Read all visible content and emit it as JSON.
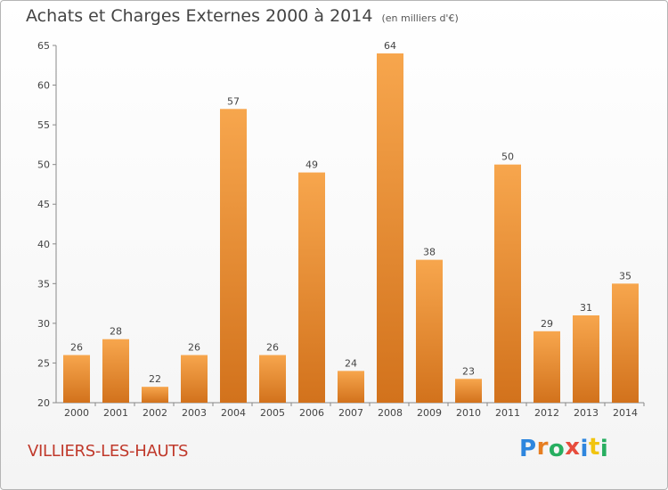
{
  "chart_title": "Achats et Charges Externes 2000 à 2014",
  "chart_subtitle": "(en milliers d'€)",
  "commune": "VILLIERS-LES-HAUTS",
  "logo_letters": [
    {
      "char": "P",
      "color": "#2e86de"
    },
    {
      "char": "r",
      "color": "#e67e22"
    },
    {
      "char": "o",
      "color": "#27ae60"
    },
    {
      "char": "x",
      "color": "#e74c3c"
    },
    {
      "char": "i",
      "color": "#2e86de"
    },
    {
      "char": "t",
      "color": "#f1c40f"
    },
    {
      "char": "i",
      "color": "#27ae60"
    }
  ],
  "colors": {
    "bar_light": "#f7a64d",
    "bar_dark": "#d2721c",
    "commune": "#c0392b"
  },
  "chart_data": {
    "type": "bar",
    "title": "Achats et Charges Externes 2000 à 2014",
    "subtitle": "(en milliers d'€)",
    "categories": [
      "2000",
      "2001",
      "2002",
      "2003",
      "2004",
      "2005",
      "2006",
      "2007",
      "2008",
      "2009",
      "2010",
      "2011",
      "2012",
      "2013",
      "2014"
    ],
    "values": [
      26,
      28,
      22,
      26,
      57,
      26,
      49,
      24,
      64,
      38,
      23,
      50,
      29,
      31,
      35
    ],
    "ylim": [
      20,
      65
    ],
    "yticks": [
      20,
      25,
      30,
      35,
      40,
      45,
      50,
      55,
      60,
      65
    ],
    "grid": false,
    "legend": "none"
  }
}
